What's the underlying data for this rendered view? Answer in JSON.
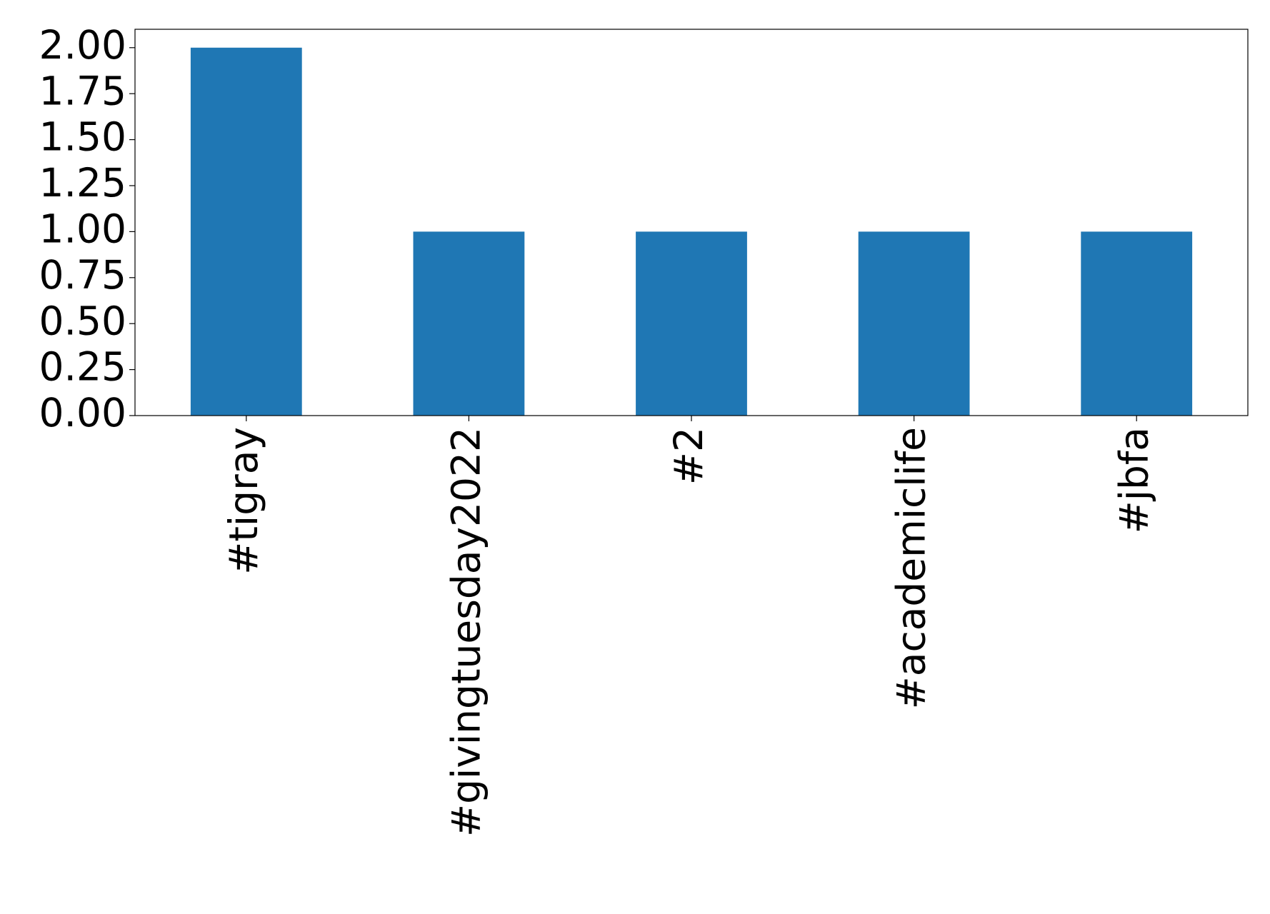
{
  "chart_data": {
    "type": "bar",
    "categories": [
      "#tigray",
      "#givingtuesday2022",
      "#2",
      "#academiclife",
      "#jbfa"
    ],
    "values": [
      2,
      1,
      1,
      1,
      1
    ],
    "color": "#1f77b4",
    "ylim": [
      0,
      2.1
    ],
    "yticks": [
      {
        "value": 0,
        "label": "0.00"
      },
      {
        "value": 0.25,
        "label": "0.25"
      },
      {
        "value": 0.5,
        "label": "0.50"
      },
      {
        "value": 0.75,
        "label": "0.75"
      },
      {
        "value": 1,
        "label": "1.00"
      },
      {
        "value": 1.25,
        "label": "1.25"
      },
      {
        "value": 1.5,
        "label": "1.50"
      },
      {
        "value": 1.75,
        "label": "1.75"
      },
      {
        "value": 2,
        "label": "2.00"
      }
    ],
    "grid": false
  }
}
